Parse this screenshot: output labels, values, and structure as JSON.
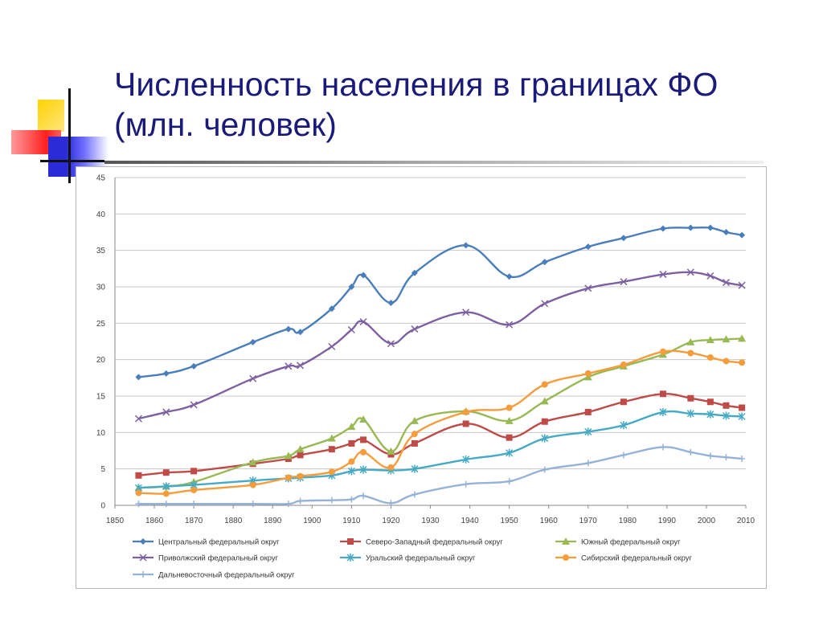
{
  "slide": {
    "title_line1": "Численность населения в границах ФО",
    "title_line2": "(млн. человек)"
  },
  "chart_data": {
    "type": "line",
    "title": "",
    "xlabel": "",
    "ylabel": "",
    "xlim": [
      1850,
      2010
    ],
    "ylim": [
      0,
      45
    ],
    "x_ticks": [
      1850,
      1860,
      1870,
      1880,
      1890,
      1900,
      1910,
      1920,
      1930,
      1940,
      1950,
      1960,
      1970,
      1980,
      1990,
      2000,
      2010
    ],
    "y_ticks": [
      0,
      5,
      10,
      15,
      20,
      25,
      30,
      35,
      40,
      45
    ],
    "grid": "horizontal",
    "legend_position": "bottom",
    "series": [
      {
        "name": "Центральный федеральный округ",
        "color": "#4a7ebb",
        "marker": "diamond",
        "x": [
          1856,
          1863,
          1870,
          1885,
          1894,
          1897,
          1905,
          1910,
          1913,
          1920,
          1926,
          1939,
          1950,
          1959,
          1970,
          1979,
          1989,
          1996,
          2001,
          2005,
          2009
        ],
        "y": [
          17.6,
          18.1,
          19.1,
          22.4,
          24.2,
          23.8,
          27.0,
          30.0,
          31.6,
          27.8,
          31.9,
          35.7,
          31.4,
          33.4,
          35.5,
          36.7,
          38.0,
          38.1,
          38.1,
          37.5,
          37.1
        ]
      },
      {
        "name": "Северо-Западный федеральный округ",
        "color": "#be4b48",
        "marker": "square",
        "x": [
          1856,
          1863,
          1870,
          1885,
          1894,
          1897,
          1905,
          1910,
          1913,
          1920,
          1926,
          1939,
          1950,
          1959,
          1970,
          1979,
          1989,
          1996,
          2001,
          2005,
          2009
        ],
        "y": [
          4.1,
          4.5,
          4.7,
          5.7,
          6.4,
          6.9,
          7.7,
          8.5,
          9.0,
          7.0,
          8.5,
          11.2,
          9.3,
          11.5,
          12.8,
          14.2,
          15.3,
          14.7,
          14.2,
          13.7,
          13.4
        ]
      },
      {
        "name": "Южный федеральный округ",
        "color": "#98b954",
        "marker": "triangle",
        "x": [
          1856,
          1863,
          1870,
          1885,
          1894,
          1897,
          1905,
          1910,
          1913,
          1920,
          1926,
          1939,
          1950,
          1959,
          1970,
          1979,
          1989,
          1996,
          2001,
          2005,
          2009
        ],
        "y": [
          2.4,
          2.6,
          3.2,
          5.9,
          6.8,
          7.7,
          9.2,
          10.8,
          11.8,
          7.4,
          11.6,
          12.9,
          11.6,
          14.3,
          17.6,
          19.1,
          20.7,
          22.4,
          22.7,
          22.8,
          22.9
        ]
      },
      {
        "name": "Приволжский федеральный округ",
        "color": "#7d60a0",
        "marker": "x",
        "x": [
          1856,
          1863,
          1870,
          1885,
          1894,
          1897,
          1905,
          1910,
          1913,
          1920,
          1926,
          1939,
          1950,
          1959,
          1970,
          1979,
          1989,
          1996,
          2001,
          2005,
          2009
        ],
        "y": [
          11.9,
          12.8,
          13.8,
          17.4,
          19.1,
          19.2,
          21.8,
          24.1,
          25.2,
          22.2,
          24.2,
          26.5,
          24.8,
          27.7,
          29.8,
          30.7,
          31.7,
          32.0,
          31.5,
          30.6,
          30.2
        ]
      },
      {
        "name": "Уральский федеральный округ",
        "color": "#46aac5",
        "marker": "star",
        "x": [
          1856,
          1863,
          1870,
          1885,
          1894,
          1897,
          1905,
          1910,
          1913,
          1920,
          1926,
          1939,
          1950,
          1959,
          1970,
          1979,
          1989,
          1996,
          2001,
          2005,
          2009
        ],
        "y": [
          2.4,
          2.6,
          2.8,
          3.4,
          3.7,
          3.8,
          4.1,
          4.7,
          4.9,
          4.8,
          5.0,
          6.3,
          7.2,
          9.2,
          10.1,
          11.0,
          12.8,
          12.6,
          12.5,
          12.3,
          12.2
        ]
      },
      {
        "name": "Сибирский федеральный округ",
        "color": "#f59c3c",
        "marker": "circle",
        "x": [
          1856,
          1863,
          1870,
          1885,
          1894,
          1897,
          1905,
          1910,
          1913,
          1920,
          1926,
          1939,
          1950,
          1959,
          1970,
          1979,
          1989,
          1996,
          2001,
          2005,
          2009
        ],
        "y": [
          1.7,
          1.6,
          2.1,
          2.8,
          3.8,
          4.0,
          4.6,
          6.0,
          7.3,
          5.2,
          9.8,
          12.8,
          13.4,
          16.6,
          18.1,
          19.3,
          21.1,
          20.9,
          20.3,
          19.8,
          19.6
        ]
      },
      {
        "name": "Дальневосточный федеральный округ",
        "color": "#95b3d7",
        "marker": "plus",
        "x": [
          1856,
          1863,
          1870,
          1885,
          1894,
          1897,
          1905,
          1910,
          1913,
          1920,
          1926,
          1939,
          1950,
          1959,
          1970,
          1979,
          1989,
          1996,
          2001,
          2005,
          2009
        ],
        "y": [
          0.2,
          0.2,
          0.2,
          0.2,
          0.2,
          0.6,
          0.7,
          0.8,
          1.3,
          0.3,
          1.5,
          2.9,
          3.3,
          4.9,
          5.8,
          6.9,
          8.0,
          7.3,
          6.8,
          6.6,
          6.4
        ]
      }
    ]
  }
}
